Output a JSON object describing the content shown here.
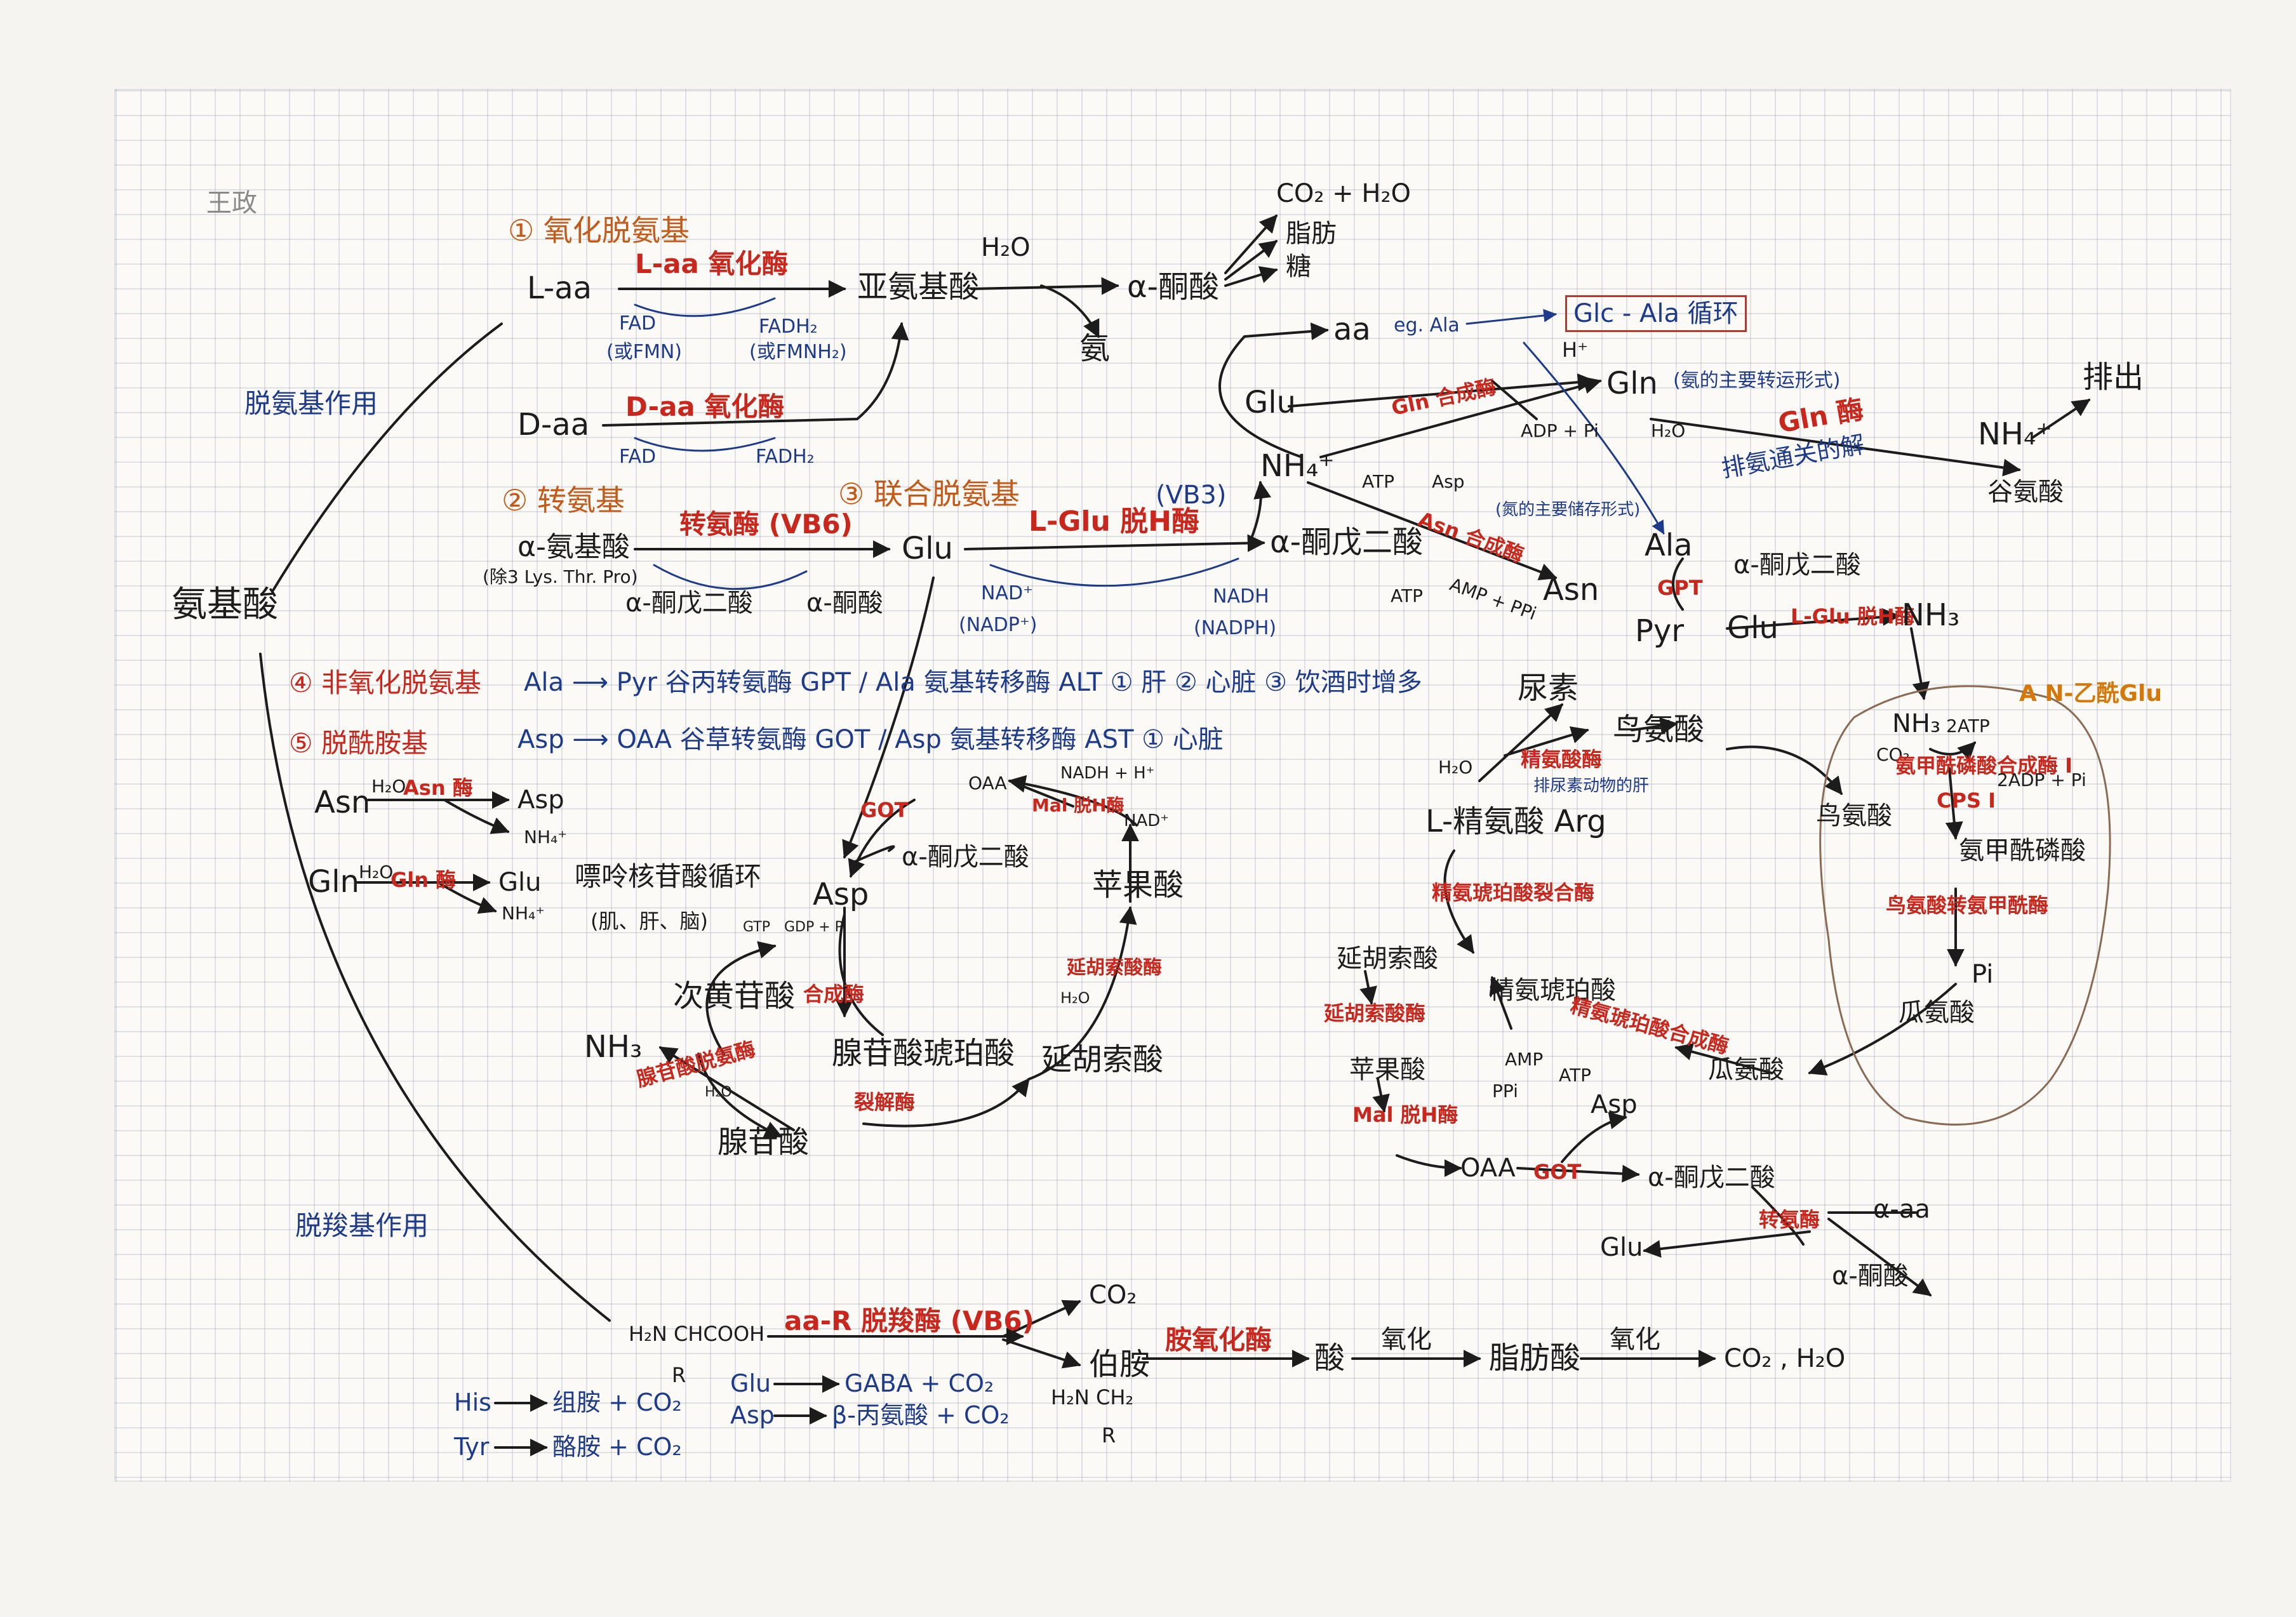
{
  "corner_label": "王政",
  "root": "氨基酸",
  "branches": {
    "deamination": "脱氨基作用",
    "decarboxylation": "脱羧基作用"
  },
  "oxidative": {
    "title": "① 氧化脱氨基",
    "l_aa": "L-aa",
    "l_enzyme": "L-aa 氧化酶",
    "fad": "FAD",
    "fmn": "(或FMN)",
    "fadh2": "FADH₂",
    "fmnh2": "(或FMNH₂)",
    "imino": "亚氨基酸",
    "h2o": "H₂O",
    "keto": "α-酮酸",
    "ammonia": "氨",
    "d_aa": "D-aa",
    "d_enzyme": "D-aa 氧化酶",
    "fad2": "FAD",
    "fadh2_2": "FADH₂",
    "co2h2o": "CO₂ + H₂O",
    "fat": "脂肪",
    "sugar": "糖"
  },
  "transamination": {
    "title": "② 转氨基",
    "aa": "α-氨基酸",
    "except": "(除3 Lys. Thr. Pro)",
    "enzyme": "转氨酶 (VB6)",
    "akg": "α-酮戊二酸",
    "keto": "α-酮酸",
    "glu": "Glu"
  },
  "combined": {
    "title": "③ 联合脱氨基",
    "enzyme": "L-Glu 脱H酶",
    "vb3": "(VB3)",
    "akg": "α-酮戊二酸",
    "nad": "NAD⁺",
    "nadp": "(NADP⁺)",
    "nadh": "NADH",
    "nadph": "(NADPH)",
    "nh4": "NH₄⁺"
  },
  "transport": {
    "aa": "aa",
    "eg": "eg. Ala",
    "cycle_box": "Glc - Ala 循环",
    "h": "H⁺",
    "glu": "Glu",
    "gln_synthase": "Gln 合成酶",
    "adp_pi": "ADP + Pi",
    "gln": "Gln",
    "gln_note": "(氨的主要转运形式)",
    "excrete": "排出",
    "h2o": "H₂O",
    "glnase": "Gln 酶",
    "detox": "排氨通关的解",
    "nh4": "NH₄⁺",
    "glutamate": "谷氨酸",
    "atp": "ATP",
    "asp": "Asp",
    "asn_synthase": "Asn 合成酶",
    "amp_ppi": "AMP + PPi",
    "asn": "Asn",
    "asn_note": "(氮的主要储存形式)",
    "ala": "Ala",
    "gpt": "GPT",
    "pyr": "Pyr",
    "akg": "α-酮戊二酸",
    "glu2": "Glu",
    "glu_dh": "L-Glu 脱H酶",
    "nh3": "NH₃"
  },
  "non_oxidative": {
    "title": "④ 非氧化脱氨基",
    "line": "Ala ⟶ Pyr  谷丙转氨酶 GPT / Ala 氨基转移酶 ALT  ① 肝  ② 心脏  ③ 饮酒时增多"
  },
  "amide": {
    "title": "⑤ 脱酰胺基",
    "line": "Asp ⟶ OAA  谷草转氨酶 GOT / Asp 氨基转移酶 AST  ① 心脏",
    "asn": "Asn",
    "asn_enzyme": "Asn 酶",
    "asp": "Asp",
    "nh4a": "NH₄⁺",
    "gln": "Gln",
    "gln_enzyme": "Gln 酶",
    "glu": "Glu",
    "nh4b": "NH₄⁺",
    "h2o": "H₂O"
  },
  "purine": {
    "title": "嘌呤核苷酸循环",
    "tissues": "(肌、肝、脑)",
    "oaa": "OAA",
    "got": "GOT",
    "akg": "α-酮戊二酸",
    "nadh": "NADH + H⁺",
    "mal_dh": "Mal 脱H酶",
    "nad": "NAD⁺",
    "asp": "Asp",
    "malate": "苹果酸",
    "gtp": "GTP",
    "gdp": "GDP + Pi",
    "imp": "次黄苷酸",
    "synthase": "合成酶",
    "fum_hyd": "延胡索酸酶",
    "h2o": "H₂O",
    "nh3": "NH₃",
    "ampd": "腺苷酸脱氨酶",
    "h2o2": "H₂O",
    "adsucc": "腺苷酸琥珀酸",
    "fumarate": "延胡索酸",
    "lyase": "裂解酶",
    "amp": "腺苷酸"
  },
  "urea": {
    "marker": "A N-乙酰Glu",
    "urea": "尿素",
    "ornithine": "鸟氨酸",
    "h2o": "H₂O",
    "arginase": "精氨酸酶",
    "liver_note": "排尿素动物的肝",
    "arg": "L-精氨酸 Arg",
    "asl": "精氨琥珀酸裂合酶",
    "fumarate": "延胡索酸",
    "argsucc": "精氨琥珀酸",
    "fum_enz": "延胡索酸酶",
    "ass": "精氨琥珀酸合成酶",
    "amp": "AMP",
    "ppi": "PPi",
    "atp": "ATP",
    "malate": "苹果酸",
    "mal_dh": "Mal 脱H酶",
    "asp": "Asp",
    "citrulline_l": "瓜氨酸",
    "oaa": "OAA",
    "got": "GOT",
    "akg": "α-酮戊二酸",
    "trans": "转氨酶",
    "aa": "α-aa",
    "glu": "Glu",
    "keto": "α-酮酸",
    "nh3": "NH₃",
    "atp2": "2ATP",
    "co2": "CO₂",
    "cps": "氨甲酰磷酸合成酶 I",
    "cps1": "CPS I",
    "adp": "2ADP + Pi",
    "orn2": "鸟氨酸",
    "cp": "氨甲酰磷酸",
    "otc": "鸟氨酸转氨甲酰酶",
    "pi": "Pi",
    "citrulline": "瓜氨酸"
  },
  "decarb": {
    "substrate": "H₂N CHCOOH",
    "r": "R",
    "enzyme": "aa-R 脱羧酶 (VB6)",
    "co2": "CO₂",
    "amine": "伯胺",
    "amine_f": "H₂N CH₂",
    "amine_r": "R",
    "mao": "胺氧化酶",
    "acid": "酸",
    "oxid1": "氧化",
    "fatty": "脂肪酸",
    "oxid2": "氧化",
    "final": "CO₂ , H₂O",
    "his": "His",
    "histamine": "组胺 + CO₂",
    "tyr": "Tyr",
    "tyramine": "酪胺 + CO₂",
    "glu": "Glu",
    "gaba": "GABA + CO₂",
    "asp": "Asp",
    "beta": "β-丙氨酸 + CO₂"
  }
}
